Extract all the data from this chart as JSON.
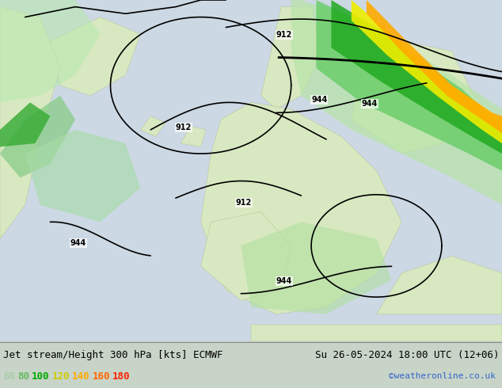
{
  "title_left": "Jet stream/Height 300 hPa [kts] ECMWF",
  "title_right": "Su 26-05-2024 18:00 UTC (12+06)",
  "credit": "©weatheronline.co.uk",
  "legend_values": [
    60,
    80,
    100,
    120,
    140,
    160,
    180
  ],
  "legend_colors": [
    "#aaddaa",
    "#55cc55",
    "#00aa00",
    "#dddd00",
    "#ffaa00",
    "#ff5500",
    "#ff0000"
  ],
  "jet_fill_colors": {
    "60": "#c8e8c8",
    "80": "#88cc88",
    "100": "#33bb33",
    "120": "#eeee44",
    "140": "#ffcc00",
    "160": "#ff6600",
    "180": "#ff2200"
  },
  "background_color": "#e8e8e8",
  "map_bg": "#d0d8e8",
  "land_color": "#e0eecc",
  "text_color": "#000000",
  "figsize": [
    6.34,
    4.9
  ],
  "dpi": 100
}
